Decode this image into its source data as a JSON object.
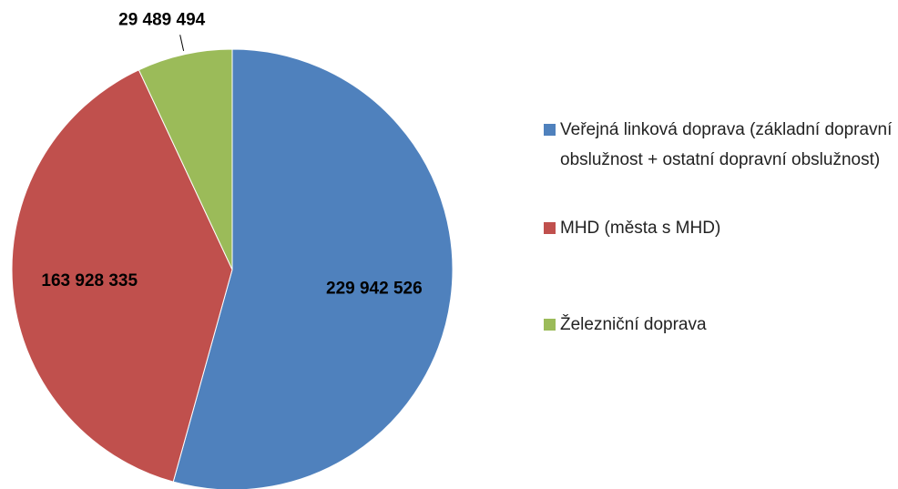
{
  "chart_data": {
    "type": "pie",
    "categories": [
      "Veřejná linková doprava (základní dopravní obslužnost + ostatní dopravní obslužnost)",
      "MHD (města s MHD)",
      "Železniční doprava"
    ],
    "values": [
      229942526,
      163928335,
      29489494
    ],
    "value_labels": [
      "229 942 526",
      "163 928 335",
      "29 489 494"
    ],
    "colors": [
      "#4f81bd",
      "#c0504d",
      "#9bbb59"
    ],
    "legend": "right"
  }
}
